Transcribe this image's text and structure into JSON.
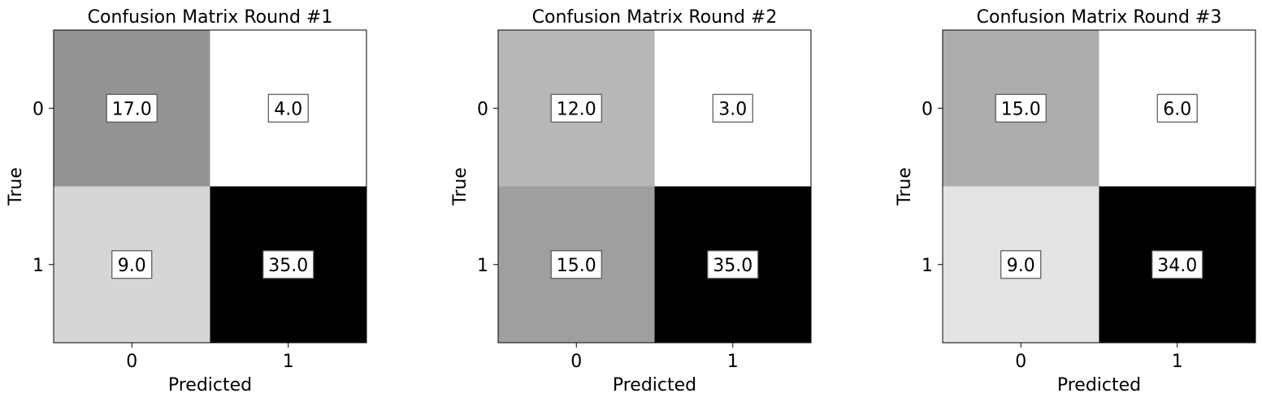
{
  "chart_data": [
    {
      "type": "heatmap",
      "title": "Confusion Matrix Round #1",
      "xlabel": "Predicted",
      "ylabel": "True",
      "x_categories": [
        "0",
        "1"
      ],
      "y_categories": [
        "0",
        "1"
      ],
      "values": [
        [
          17.0,
          4.0
        ],
        [
          9.0,
          35.0
        ]
      ],
      "value_labels": [
        [
          "17.0",
          "4.0"
        ],
        [
          "9.0",
          "35.0"
        ]
      ],
      "colormap": "grayscale-reversed",
      "grid": false
    },
    {
      "type": "heatmap",
      "title": "Confusion Matrix Round #2",
      "xlabel": "Predicted",
      "ylabel": "True",
      "x_categories": [
        "0",
        "1"
      ],
      "y_categories": [
        "0",
        "1"
      ],
      "values": [
        [
          12.0,
          3.0
        ],
        [
          15.0,
          35.0
        ]
      ],
      "value_labels": [
        [
          "12.0",
          "3.0"
        ],
        [
          "15.0",
          "35.0"
        ]
      ],
      "colormap": "grayscale-reversed",
      "grid": false
    },
    {
      "type": "heatmap",
      "title": "Confusion Matrix Round #3",
      "xlabel": "Predicted",
      "ylabel": "True",
      "x_categories": [
        "0",
        "1"
      ],
      "y_categories": [
        "0",
        "1"
      ],
      "values": [
        [
          15.0,
          6.0
        ],
        [
          9.0,
          34.0
        ]
      ],
      "value_labels": [
        [
          "15.0",
          "6.0"
        ],
        [
          "9.0",
          "34.0"
        ]
      ],
      "colormap": "grayscale-reversed",
      "grid": false
    }
  ]
}
